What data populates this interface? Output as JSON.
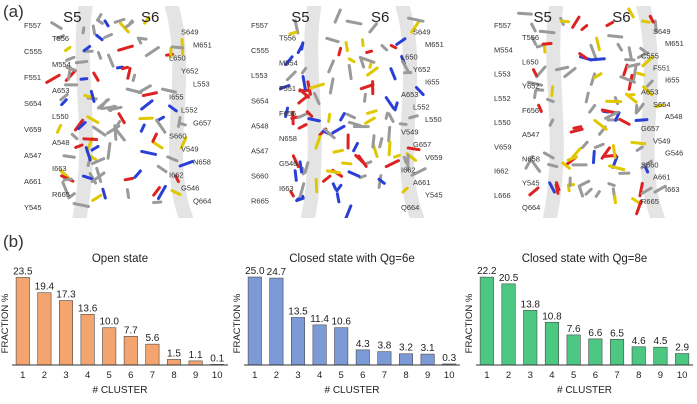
{
  "panel_labels": {
    "a": "(a)",
    "b": "(b)"
  },
  "structures": [
    {
      "helices": [
        "S5",
        "S6"
      ],
      "residues": [
        "F557",
        "S649",
        "T556",
        "M651",
        "C555",
        "L650",
        "M554",
        "Y652",
        "F551",
        "L553",
        "A653",
        "I655",
        "S654",
        "L552",
        "L550",
        "G657",
        "V659",
        "S660",
        "A548",
        "V549",
        "A547",
        "N658",
        "I663",
        "I662",
        "A661",
        "G546",
        "R665",
        "Q664",
        "Y545"
      ]
    },
    {
      "helices": [
        "S5",
        "S6"
      ],
      "residues": [
        "F557",
        "S649",
        "T556",
        "M651",
        "C555",
        "L650",
        "M554",
        "Y652",
        "L553",
        "I655",
        "F551",
        "A653",
        "S654",
        "L552",
        "F656",
        "L550",
        "A548",
        "V549",
        "N658",
        "G657",
        "A547",
        "V659",
        "G546",
        "I662",
        "S660",
        "A661",
        "I663",
        "Y545",
        "R665",
        "Q664"
      ]
    },
    {
      "helices": [
        "S5",
        "S6"
      ],
      "residues": [
        "F557",
        "S649",
        "T556",
        "M651",
        "M554",
        "C555",
        "L650",
        "F551",
        "L553",
        "I655",
        "Y652",
        "A653",
        "L552",
        "S654",
        "F656",
        "A548",
        "L550",
        "G657",
        "A547",
        "V549",
        "V659",
        "G546",
        "N658",
        "S660",
        "I662",
        "A661",
        "Y545",
        "I663",
        "L666",
        "R665",
        "Q664"
      ]
    }
  ],
  "colors": {
    "open": "#f4a46e",
    "closed_6e": "#7b9ad6",
    "closed_8e": "#4dc882",
    "bar_edge": "#4a4a4a",
    "axis": "#333333"
  },
  "chart_data": [
    {
      "type": "bar",
      "title": "Open state",
      "xlabel": "# CLUSTER",
      "ylabel": "FRACTION %",
      "categories": [
        "1",
        "2",
        "3",
        "4",
        "5",
        "6",
        "7",
        "8",
        "9",
        "10"
      ],
      "values": [
        23.5,
        19.4,
        17.3,
        13.6,
        10.0,
        7.7,
        5.6,
        1.5,
        1.1,
        0.1
      ],
      "data_labels": [
        "23.5",
        "19.4",
        "17.3",
        "13.6",
        "10.0",
        "7.7",
        "5.6",
        "1.5",
        "1.1",
        "0.1"
      ],
      "ylim": [
        0,
        25.5
      ]
    },
    {
      "type": "bar",
      "title": "Closed state with Qg=6e",
      "xlabel": "# CLUSTER",
      "ylabel": "FRACTION %",
      "categories": [
        "1",
        "2",
        "3",
        "4",
        "5",
        "6",
        "7",
        "8",
        "9",
        "10"
      ],
      "values": [
        25.0,
        24.7,
        13.5,
        11.4,
        10.6,
        4.3,
        3.8,
        3.2,
        3.1,
        0.3
      ],
      "data_labels": [
        "25.0",
        "24.7",
        "13.5",
        "11.4",
        "10.6",
        "4.3",
        "3.8",
        "3.2",
        "3.1",
        "0.3"
      ],
      "ylim": [
        0,
        27
      ]
    },
    {
      "type": "bar",
      "title": "Closed state with Qg=8e",
      "xlabel": "# CLUSTER",
      "ylabel": "FRACTION %",
      "categories": [
        "1",
        "2",
        "3",
        "4",
        "5",
        "6",
        "7",
        "8",
        "9",
        "10"
      ],
      "values": [
        22.2,
        20.5,
        13.8,
        10.8,
        7.6,
        6.6,
        6.5,
        4.6,
        4.5,
        2.9
      ],
      "data_labels": [
        "22.2",
        "20.5",
        "13.8",
        "10.8",
        "7.6",
        "6.6",
        "6.5",
        "4.6",
        "4.5",
        "2.9"
      ],
      "ylim": [
        0,
        24
      ]
    }
  ]
}
